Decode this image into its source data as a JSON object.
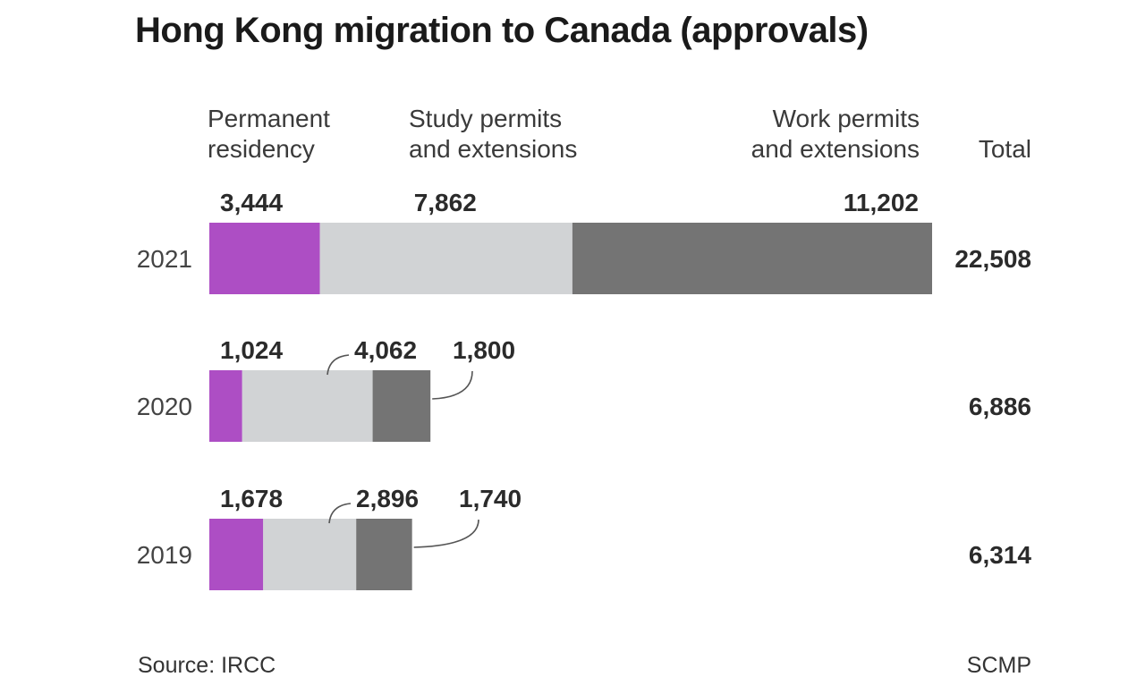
{
  "title": "Hong Kong migration to Canada (approvals)",
  "headers": {
    "permanent": [
      "Permanent",
      "residency"
    ],
    "study": [
      "Study permits",
      "and extensions"
    ],
    "work": [
      "Work permits",
      "and extensions"
    ],
    "total": "Total"
  },
  "footer": {
    "source": "Source: IRCC",
    "credit": "SCMP"
  },
  "colors": {
    "permanent": "#ad4ec4",
    "study": "#d1d3d5",
    "work": "#747474",
    "leader": "#555555"
  },
  "chart_data": {
    "type": "bar",
    "orientation": "horizontal",
    "stacked": true,
    "categories": [
      "2021",
      "2020",
      "2019"
    ],
    "series": [
      {
        "name": "Permanent residency",
        "values": [
          3444,
          1024,
          1678
        ],
        "labels": [
          "3,444",
          "1,024",
          "1,678"
        ]
      },
      {
        "name": "Study permits and extensions",
        "values": [
          7862,
          4062,
          2896
        ],
        "labels": [
          "7,862",
          "4,062",
          "2,896"
        ]
      },
      {
        "name": "Work permits and extensions",
        "values": [
          11202,
          1800,
          1740
        ],
        "labels": [
          "11,202",
          "1,800",
          "1,740"
        ]
      }
    ],
    "totals": [
      22508,
      6886,
      6314
    ],
    "total_labels": [
      "22,508",
      "6,886",
      "6,314"
    ],
    "legend": "top",
    "grid": false
  }
}
